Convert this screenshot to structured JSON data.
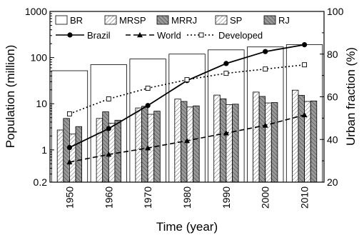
{
  "chart_data": {
    "type": "bar",
    "xlabel": "Time (year)",
    "ylabel": "Population (million)",
    "y2label": "Urban fraction (%)",
    "yscale": "log",
    "ylim": [
      0.2,
      1000
    ],
    "y_ticks": [
      "0.2",
      "1",
      "10",
      "100",
      "1000"
    ],
    "y_tick_values": [
      0.2,
      1,
      10,
      100,
      1000
    ],
    "y2lim": [
      20,
      100
    ],
    "y2_ticks": [
      "20",
      "40",
      "60",
      "80",
      "100"
    ],
    "y2_tick_values": [
      20,
      40,
      60,
      80,
      100
    ],
    "categories": [
      "1950",
      "1960",
      "1970",
      "1980",
      "1990",
      "2000",
      "2010"
    ],
    "bar_series": [
      {
        "name": "BR",
        "pattern": "none",
        "values": [
          52,
          70,
          93,
          119,
          147,
          170,
          191
        ]
      },
      {
        "name": "MRSP",
        "pattern": "light-hatch",
        "values": [
          2.7,
          4.8,
          8.1,
          12.6,
          15.4,
          17.9,
          19.7
        ]
      },
      {
        "name": "MRRJ",
        "pattern": "dark-hatch",
        "values": [
          4.8,
          6.7,
          8.8,
          11.2,
          12.8,
          14.4,
          15.2
        ]
      },
      {
        "name": "SP",
        "pattern": "light-hatch",
        "values": [
          2.2,
          3.8,
          5.9,
          8.5,
          9.6,
          10.4,
          11.2
        ]
      },
      {
        "name": "RJ",
        "pattern": "dark-hatch",
        "values": [
          3.2,
          4.4,
          6.9,
          9.0,
          9.8,
          10.6,
          11.5
        ]
      }
    ],
    "line_series": [
      {
        "name": "Brazil",
        "axis": "right",
        "marker": "filled-circle",
        "style": "solid",
        "values": [
          36.2,
          45.1,
          55.9,
          67.6,
          75.6,
          81.2,
          84.4
        ]
      },
      {
        "name": "World",
        "axis": "right",
        "marker": "filled-triangle",
        "style": "dashed",
        "values": [
          29.4,
          33.0,
          36.0,
          39.4,
          43.0,
          46.6,
          51.5
        ]
      },
      {
        "name": "Developed",
        "axis": "right",
        "marker": "open-square",
        "style": "dotted",
        "values": [
          52,
          59,
          64,
          68,
          71,
          73,
          75
        ]
      }
    ],
    "legend_position": "top-inside"
  }
}
